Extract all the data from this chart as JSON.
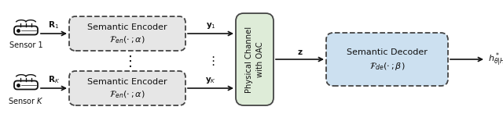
{
  "fig_width": 6.4,
  "fig_height": 1.55,
  "dpi": 100,
  "bg_color": "#ffffff",
  "enc_box_color": "#e6e6e6",
  "enc_box_edge": "#444444",
  "channel_box_color": "#deecd8",
  "channel_box_edge": "#444444",
  "dec_box_color": "#cce0f0",
  "dec_box_edge": "#444444",
  "sensor1_label": "Sensor 1",
  "sensorK_label": "Sensor $K$",
  "enc_title": "Semantic Encoder",
  "enc_func": "$\\mathcal{F}_{en}(\\cdot\\,;\\alpha)$",
  "channel_lines": [
    "Physical",
    "Channel",
    "with OAC"
  ],
  "dec_title": "Semantic Decoder",
  "dec_func": "$\\mathcal{F}_{de}(\\cdot\\,;\\beta)$",
  "arrow_color": "#111111",
  "text_color": "#111111",
  "font_size_main": 8.0,
  "font_size_small": 7.0,
  "font_size_label": 7.5,
  "font_size_channel": 7.2
}
